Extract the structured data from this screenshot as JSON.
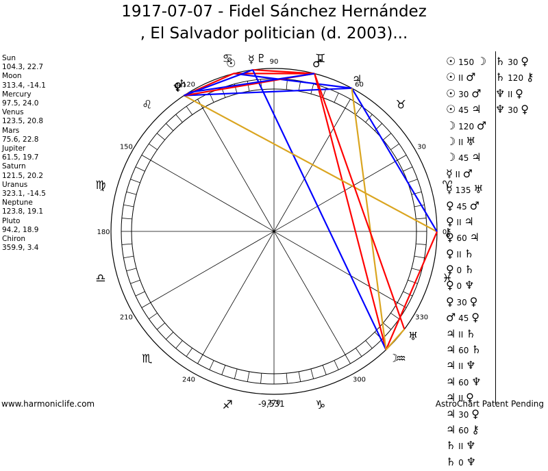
{
  "title_line1": "1917-07-07 - Fidel Sánchez Hernández",
  "title_line2": ", El Salvador politician (d. 2003)...",
  "footer": {
    "left": "www.harmoniclife.com",
    "center": "-9,531",
    "right": "AstroChart Patent Pending"
  },
  "planets": [
    {
      "name": "Sun",
      "coords": "104.3, 22.7",
      "lon": 104.3,
      "glyph": "☉"
    },
    {
      "name": "Moon",
      "coords": "313.4, -14.1",
      "lon": 313.4,
      "glyph": "☽"
    },
    {
      "name": "Mercury",
      "coords": "97.5, 24.0",
      "lon": 97.5,
      "glyph": "☿"
    },
    {
      "name": "Venus",
      "coords": "123.5, 20.8",
      "lon": 123.5,
      "glyph": "♀"
    },
    {
      "name": "Mars",
      "coords": "75.6, 22.8",
      "lon": 75.6,
      "glyph": "♂"
    },
    {
      "name": "Jupiter",
      "coords": "61.5, 19.7",
      "lon": 61.5,
      "glyph": "♃"
    },
    {
      "name": "Saturn",
      "coords": "121.5, 20.2",
      "lon": 121.5,
      "glyph": "♄"
    },
    {
      "name": "Uranus",
      "coords": "323.1, -14.5",
      "lon": 323.1,
      "glyph": "♅"
    },
    {
      "name": "Neptune",
      "coords": "123.8, 19.1",
      "lon": 123.8,
      "glyph": "♆"
    },
    {
      "name": "Pluto",
      "coords": "94.2, 18.9",
      "lon": 94.2,
      "glyph": "♇"
    },
    {
      "name": "Chiron",
      "coords": "359.9, 3.4",
      "lon": 359.9,
      "glyph": "⚷"
    }
  ],
  "degree_labels": [
    {
      "text": "0",
      "deg": 0
    },
    {
      "text": "30",
      "deg": 30
    },
    {
      "text": "60",
      "deg": 60
    },
    {
      "text": "90",
      "deg": 90
    },
    {
      "text": "120",
      "deg": 120
    },
    {
      "text": "150",
      "deg": 150
    },
    {
      "text": "180",
      "deg": 180
    },
    {
      "text": "210",
      "deg": 210
    },
    {
      "text": "240",
      "deg": 240
    },
    {
      "text": "270",
      "deg": 270
    },
    {
      "text": "300",
      "deg": 300
    },
    {
      "text": "330",
      "deg": 330
    }
  ],
  "signs": [
    {
      "glyph": "♈",
      "deg": 15
    },
    {
      "glyph": "♉",
      "deg": 45
    },
    {
      "glyph": "♊",
      "deg": 75
    },
    {
      "glyph": "♋",
      "deg": 105
    },
    {
      "glyph": "♌",
      "deg": 135
    },
    {
      "glyph": "♍",
      "deg": 165
    },
    {
      "glyph": "♎",
      "deg": 195
    },
    {
      "glyph": "♏",
      "deg": 225
    },
    {
      "glyph": "♐",
      "deg": 255
    },
    {
      "glyph": "♑",
      "deg": 285
    },
    {
      "glyph": "♒",
      "deg": 315
    },
    {
      "glyph": "♓",
      "deg": 345
    }
  ],
  "aspect_lines": [
    {
      "a": "Sun",
      "b": "Jupiter",
      "color": "#0000ff"
    },
    {
      "a": "Sun",
      "b": "Venus",
      "color": "#ff0000"
    },
    {
      "a": "Sun",
      "b": "Mars",
      "color": "#ff0000"
    },
    {
      "a": "Moon",
      "b": "Mars",
      "color": "#ff0000"
    },
    {
      "a": "Mercury",
      "b": "Mars",
      "color": "#ff0000"
    },
    {
      "a": "Mercury",
      "b": "Moon",
      "color": "#0000ff"
    },
    {
      "a": "Venus",
      "b": "Chiron",
      "color": "#daa520"
    },
    {
      "a": "Venus",
      "b": "Jupiter",
      "color": "#0000ff"
    },
    {
      "a": "Venus",
      "b": "Mars",
      "color": "#ff0000"
    },
    {
      "a": "Jupiter",
      "b": "Chiron",
      "color": "#0000ff"
    },
    {
      "a": "Jupiter",
      "b": "Moon",
      "color": "#daa520"
    },
    {
      "a": "Mars",
      "b": "Uranus",
      "color": "#ff0000"
    },
    {
      "a": "Moon",
      "b": "Chiron",
      "color": "#ff0000"
    },
    {
      "a": "Venus",
      "b": "Mercury",
      "color": "#0000ff"
    },
    {
      "a": "Saturn",
      "b": "Mars",
      "color": "#0000ff"
    },
    {
      "a": "Moon",
      "b": "Uranus",
      "color": "#daa520"
    }
  ],
  "aspects_left": [
    {
      "p1": "☉",
      "deg": "150",
      "p2": "☽"
    },
    {
      "p1": "☉",
      "deg": "II",
      "p2": "♂"
    },
    {
      "p1": "☉",
      "deg": "30",
      "p2": "♂"
    },
    {
      "p1": "☉",
      "deg": "45",
      "p2": "♃"
    },
    {
      "p1": "☽",
      "deg": "120",
      "p2": "♂"
    },
    {
      "p1": "☽",
      "deg": "II",
      "p2": "♅"
    },
    {
      "p1": "☽",
      "deg": "45",
      "p2": "♃"
    },
    {
      "p1": "☿",
      "deg": "II",
      "p2": "♂"
    },
    {
      "p1": "☿",
      "deg": "135",
      "p2": "♅"
    },
    {
      "p1": "♀",
      "deg": "45",
      "p2": "♂"
    },
    {
      "p1": "♀",
      "deg": "II",
      "p2": "♃"
    },
    {
      "p1": "♀",
      "deg": "60",
      "p2": "♃"
    },
    {
      "p1": "♀",
      "deg": "II",
      "p2": "♄"
    },
    {
      "p1": "♀",
      "deg": "0",
      "p2": "♄"
    },
    {
      "p1": "♀",
      "deg": "0",
      "p2": "♆"
    },
    {
      "p1": "♀",
      "deg": "30",
      "p2": "♀"
    },
    {
      "p1": "♂",
      "deg": "45",
      "p2": "♀"
    },
    {
      "p1": "♃",
      "deg": "II",
      "p2": "♄"
    },
    {
      "p1": "♃",
      "deg": "60",
      "p2": "♄"
    },
    {
      "p1": "♃",
      "deg": "II",
      "p2": "♆"
    },
    {
      "p1": "♃",
      "deg": "60",
      "p2": "♆"
    },
    {
      "p1": "♃",
      "deg": "II",
      "p2": "♀"
    },
    {
      "p1": "♃",
      "deg": "30",
      "p2": "♀"
    },
    {
      "p1": "♃",
      "deg": "60",
      "p2": "⚷"
    },
    {
      "p1": "♄",
      "deg": "II",
      "p2": "♆"
    },
    {
      "p1": "♄",
      "deg": "0",
      "p2": "♆"
    }
  ],
  "aspects_right": [
    {
      "p1": "♄",
      "deg": "30",
      "p2": "♀"
    },
    {
      "p1": "♄",
      "deg": "120",
      "p2": "⚷"
    },
    {
      "p1": "♆",
      "deg": "II",
      "p2": "♀"
    },
    {
      "p1": "♆",
      "deg": "30",
      "p2": "♀"
    }
  ]
}
